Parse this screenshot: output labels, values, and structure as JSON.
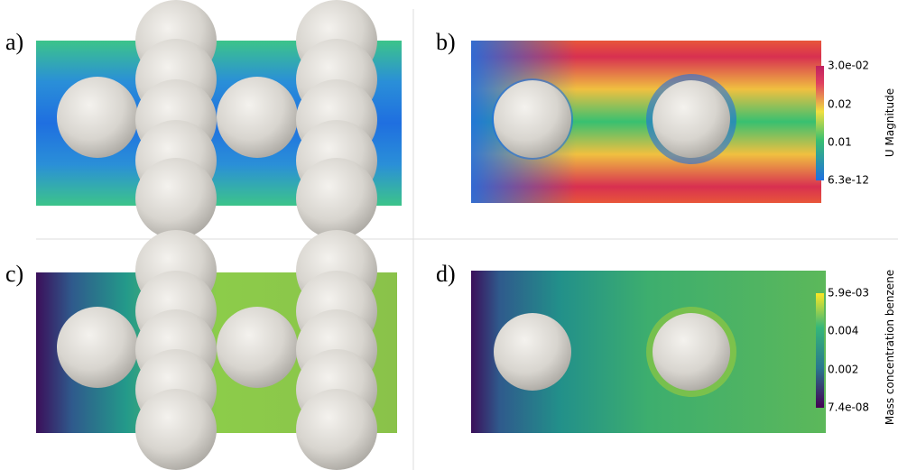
{
  "panels": [
    {
      "label": "a)"
    },
    {
      "label": "b)",
      "colorbar": {
        "title": "U Magnitude",
        "ticks": [
          "3.0e-02",
          "0.02",
          "0.01",
          "6.3e-12"
        ]
      }
    },
    {
      "label": "c)"
    },
    {
      "label": "d)",
      "colorbar": {
        "title": "Mass concentration benzene",
        "ticks": [
          "5.9e-03",
          "0.004",
          "0.002",
          "7.4e-08"
        ]
      }
    }
  ]
}
